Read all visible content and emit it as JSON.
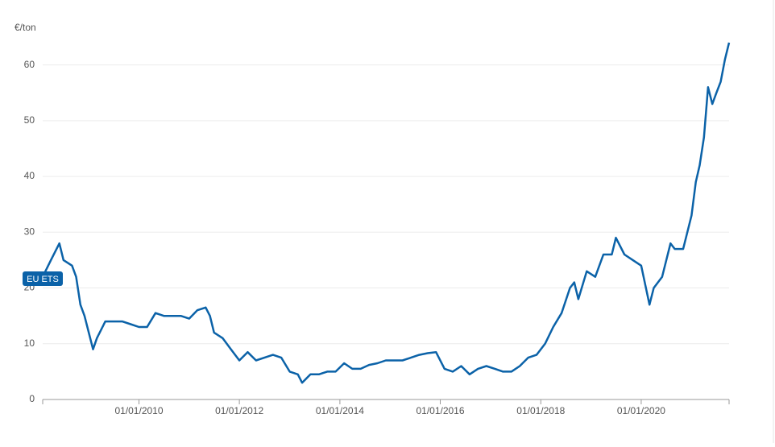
{
  "chart_data": {
    "type": "line",
    "y_label": "€/ton",
    "x": [
      "2008-02-01",
      "2008-04-01",
      "2008-06-01",
      "2008-07-01",
      "2008-09-01",
      "2008-10-01",
      "2008-11-01",
      "2008-12-01",
      "2009-01-01",
      "2009-02-01",
      "2009-03-01",
      "2009-05-01",
      "2009-07-01",
      "2009-09-01",
      "2009-11-01",
      "2010-01-01",
      "2010-03-01",
      "2010-05-01",
      "2010-07-01",
      "2010-09-01",
      "2010-11-01",
      "2011-01-01",
      "2011-03-01",
      "2011-05-01",
      "2011-06-01",
      "2011-07-01",
      "2011-09-01",
      "2011-11-01",
      "2012-01-01",
      "2012-03-01",
      "2012-05-01",
      "2012-07-01",
      "2012-09-01",
      "2012-11-01",
      "2013-01-01",
      "2013-03-01",
      "2013-04-01",
      "2013-06-01",
      "2013-08-01",
      "2013-10-01",
      "2013-12-01",
      "2014-02-01",
      "2014-04-01",
      "2014-06-01",
      "2014-08-01",
      "2014-10-01",
      "2014-12-01",
      "2015-02-01",
      "2015-04-01",
      "2015-06-01",
      "2015-08-01",
      "2015-10-01",
      "2015-12-01",
      "2016-02-01",
      "2016-04-01",
      "2016-06-01",
      "2016-08-01",
      "2016-10-01",
      "2016-12-01",
      "2017-02-01",
      "2017-04-01",
      "2017-06-01",
      "2017-08-01",
      "2017-10-01",
      "2017-12-01",
      "2018-02-01",
      "2018-04-01",
      "2018-06-01",
      "2018-08-01",
      "2018-09-01",
      "2018-10-01",
      "2018-12-01",
      "2019-02-01",
      "2019-04-01",
      "2019-06-01",
      "2019-07-01",
      "2019-09-01",
      "2019-11-01",
      "2020-01-01",
      "2020-03-01",
      "2020-04-01",
      "2020-06-01",
      "2020-08-01",
      "2020-09-01",
      "2020-11-01",
      "2021-01-01",
      "2021-02-01",
      "2021-03-01",
      "2021-04-01",
      "2021-05-01",
      "2021-06-01",
      "2021-07-01",
      "2021-08-01",
      "2021-09-01",
      "2021-10-01"
    ],
    "series": [
      {
        "name": "EU ETS",
        "color": "#0b62a8",
        "values": [
          22,
          25,
          28,
          25,
          24,
          22,
          17,
          15,
          12,
          9,
          11,
          14,
          14,
          14,
          13.5,
          13,
          13,
          15.5,
          15,
          15,
          15,
          14.5,
          16,
          16.5,
          15,
          12,
          11,
          9,
          7,
          8.5,
          7,
          7.5,
          8,
          7.5,
          5,
          4.5,
          3,
          4.5,
          4.5,
          5,
          5,
          6.5,
          5.5,
          5.5,
          6.2,
          6.5,
          7,
          7,
          7,
          7.5,
          8,
          8.3,
          8.5,
          5.5,
          5,
          6,
          4.5,
          5.5,
          6,
          5.5,
          5,
          5,
          6,
          7.5,
          8,
          10,
          13,
          15.5,
          20,
          21,
          18,
          23,
          22,
          26,
          26,
          29,
          26,
          25,
          24,
          17,
          20,
          22,
          28,
          27,
          27,
          33,
          39,
          42,
          47,
          56,
          53,
          55,
          57,
          61,
          64
        ]
      }
    ],
    "xlim": [
      "2008-02-01",
      "2021-10-01"
    ],
    "xticks": [
      {
        "value": "2010-01-01",
        "label": "01/01/2010"
      },
      {
        "value": "2012-01-01",
        "label": "01/01/2012"
      },
      {
        "value": "2014-01-01",
        "label": "01/01/2014"
      },
      {
        "value": "2016-01-01",
        "label": "01/01/2016"
      },
      {
        "value": "2018-01-01",
        "label": "01/01/2018"
      },
      {
        "value": "2020-01-01",
        "label": "01/01/2020"
      }
    ],
    "ylim": [
      0,
      65
    ],
    "yticks": [
      0,
      10,
      20,
      30,
      40,
      50,
      60
    ],
    "grid": true
  }
}
